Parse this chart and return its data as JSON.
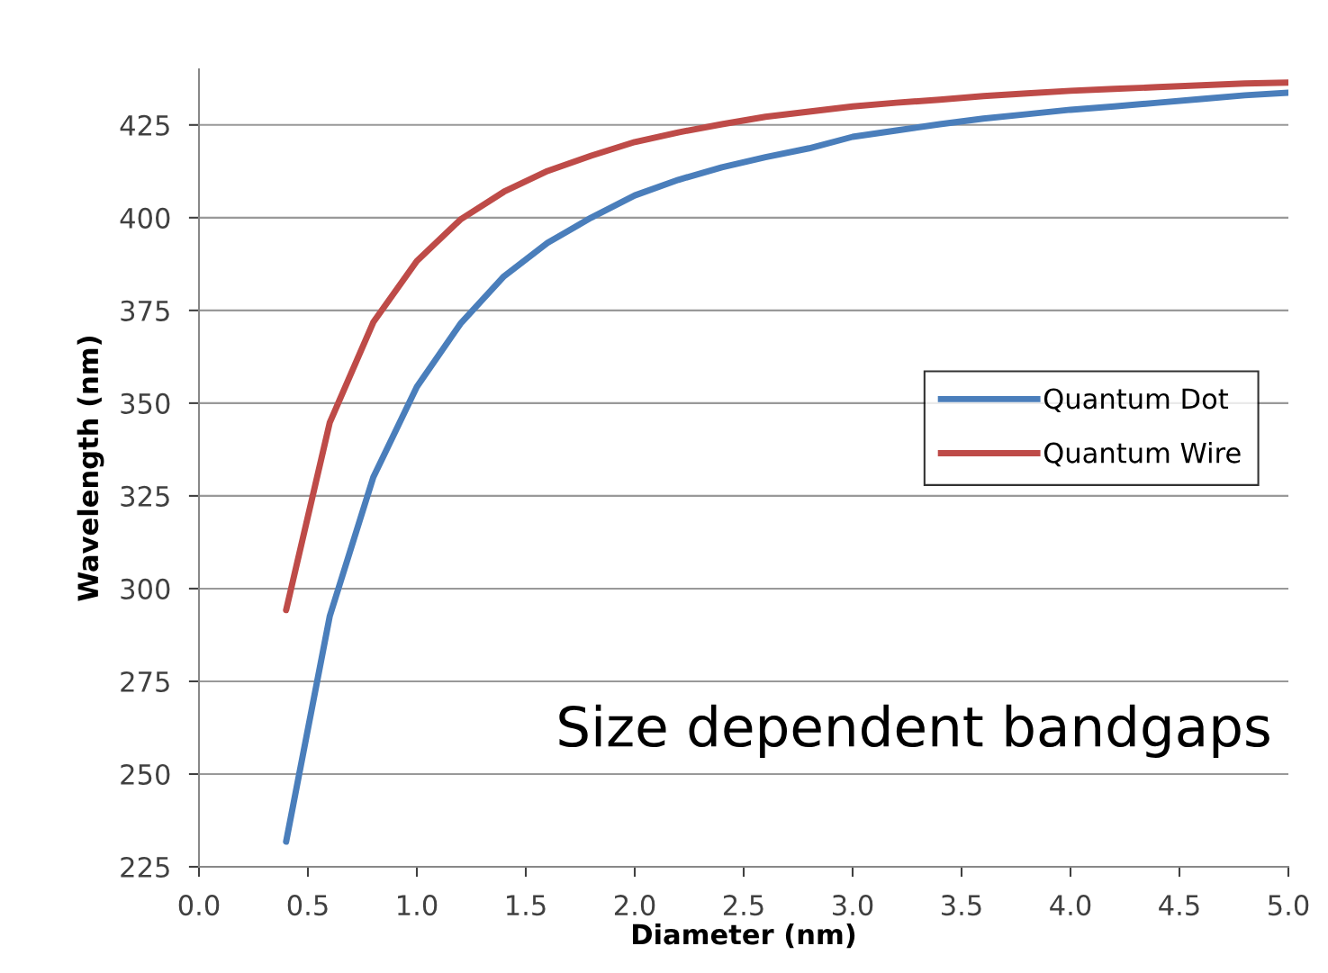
{
  "chart_data": {
    "type": "line",
    "xlabel": "Diameter (nm)",
    "ylabel": "Wavelength (nm)",
    "xlim": [
      0.0,
      5.0
    ],
    "xticks": [
      {
        "value": 0,
        "label": "0.0"
      },
      0.5,
      {
        "value": 1,
        "label": "1.0"
      },
      1.5,
      {
        "value": 2,
        "label": "2.0"
      },
      2.5,
      {
        "value": 3,
        "label": "3.0"
      },
      3.5,
      {
        "value": 4,
        "label": "4.0"
      },
      4.5,
      {
        "value": 5,
        "label": "5.0"
      }
    ],
    "ylim": [
      225,
      440
    ],
    "yticks": [
      225,
      250,
      275,
      300,
      325,
      350,
      375,
      400,
      425
    ],
    "grid": "y",
    "legend": "center right",
    "line_style": "solid",
    "marker": "none",
    "x": [
      0.4,
      0.6,
      0.8,
      1.0,
      1.2,
      1.4,
      1.6,
      1.8,
      2.0,
      2.2,
      2.4,
      2.6,
      2.8,
      3.0,
      3.2,
      3.4,
      3.6,
      3.8,
      4.0,
      4.2,
      4.4,
      4.6,
      4.8,
      5.0
    ],
    "series": [
      {
        "name": "Quantum Dot",
        "color": "#4a7ebb",
        "values": [
          231.8,
          292.5,
          330,
          354.4,
          371.4,
          384.2,
          393.2,
          400,
          406,
          410.2,
          413.6,
          416.3,
          418.7,
          421.8,
          423.5,
          425.2,
          426.7,
          427.9,
          429.1,
          430,
          431,
          432,
          433,
          433.7
        ]
      },
      {
        "name": "Quantum Wire",
        "color": "#be4b48",
        "values": [
          294.2,
          344.7,
          371.8,
          388.3,
          399.5,
          407,
          412.6,
          416.7,
          420.4,
          423,
          425.2,
          427.2,
          428.6,
          430,
          431,
          431.8,
          432.8,
          433.5,
          434.2,
          434.7,
          435.2,
          435.7,
          436.2,
          436.4
        ]
      }
    ],
    "annotations": [
      "Size dependent bandgaps"
    ]
  }
}
